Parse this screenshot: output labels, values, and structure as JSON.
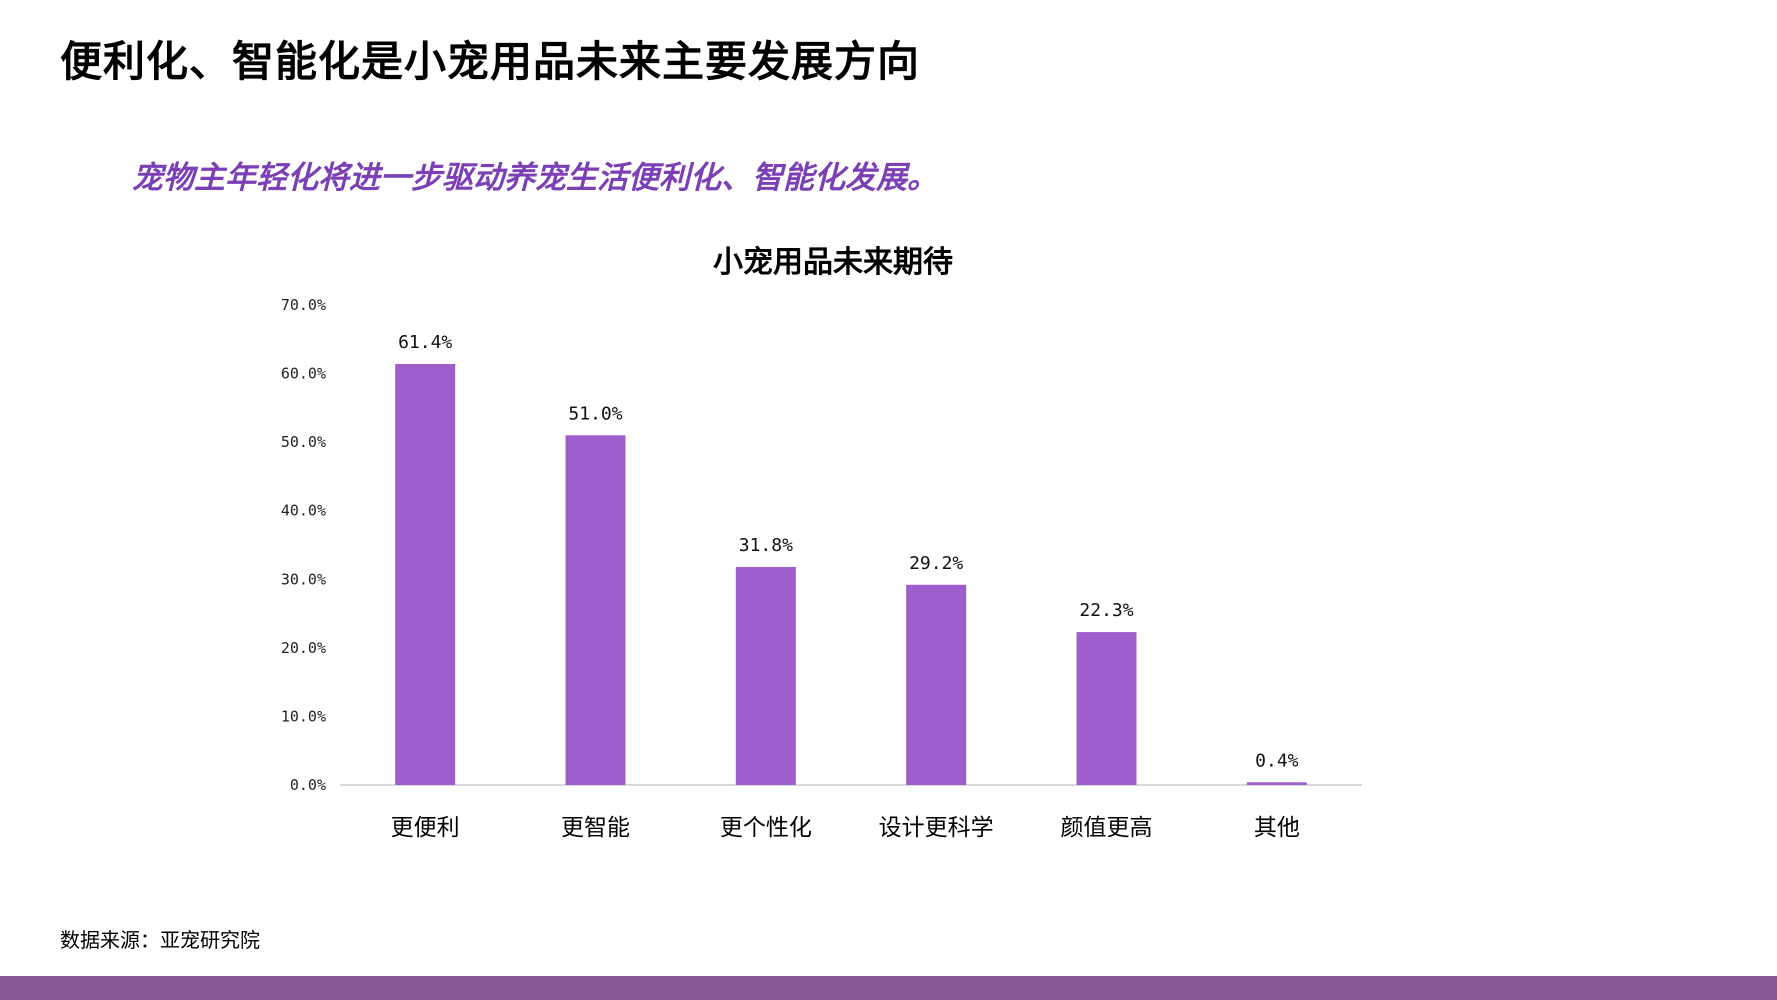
{
  "page": {
    "title": "便利化、智能化是小宠用品未来主要发展方向",
    "subtitle": "宠物主年轻化将进一步驱动养宠生活便利化、智能化发展。",
    "source": "数据来源：亚宠研究院"
  },
  "colors": {
    "accent": "#7b3fb6",
    "bar": "#9e5fcd",
    "band": "#8a5595",
    "axis": "#d9d9d9"
  },
  "chart_data": {
    "type": "bar",
    "title": "小宠用品未来期待",
    "xlabel": "",
    "ylabel": "",
    "categories": [
      "更便利",
      "更智能",
      "更个性化",
      "设计更科学",
      "颜值更高",
      "其他"
    ],
    "values": [
      61.4,
      51.0,
      31.8,
      29.2,
      22.3,
      0.4
    ],
    "value_labels": [
      "61.4%",
      "51.0%",
      "31.8%",
      "29.2%",
      "22.3%",
      "0.4%"
    ],
    "ylim": [
      0,
      70
    ],
    "yticks": [
      0,
      10,
      20,
      30,
      40,
      50,
      60,
      70
    ],
    "ytick_labels": [
      "0.0%",
      "10.0%",
      "20.0%",
      "30.0%",
      "40.0%",
      "50.0%",
      "60.0%",
      "70.0%"
    ],
    "grid": false,
    "legend": "none"
  }
}
